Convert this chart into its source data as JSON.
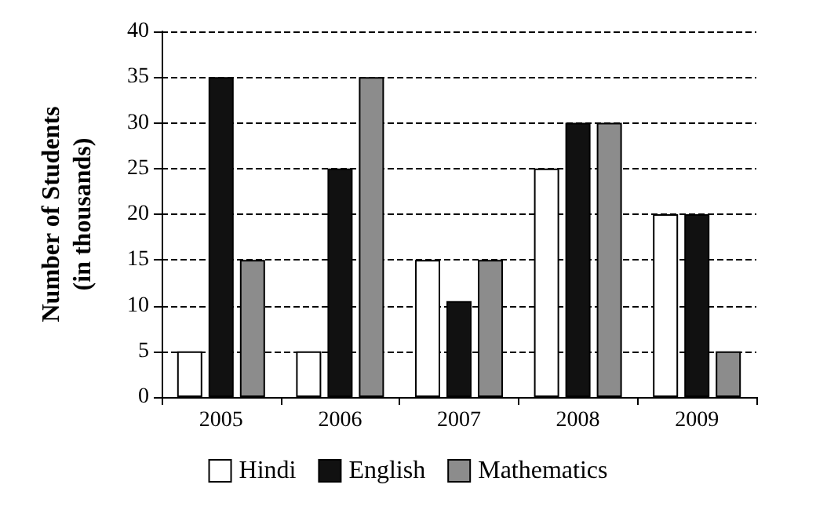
{
  "chart_data": {
    "type": "bar",
    "ylabel": "Number of Students\n(in thousands)",
    "categories": [
      "2005",
      "2006",
      "2007",
      "2008",
      "2009"
    ],
    "series": [
      {
        "name": "Hindi",
        "color": "#ffffff",
        "values": [
          5,
          5,
          15,
          25,
          20
        ]
      },
      {
        "name": "English",
        "color": "#111111",
        "values": [
          35,
          25,
          10.5,
          30,
          20
        ]
      },
      {
        "name": "Mathematics",
        "color": "#8c8c8c",
        "values": [
          15,
          35,
          15,
          30,
          5
        ]
      }
    ],
    "ylim": [
      0,
      40
    ],
    "yticks": [
      0,
      5,
      10,
      15,
      20,
      25,
      30,
      35,
      40
    ],
    "grid": "y",
    "legend": "bottom"
  }
}
